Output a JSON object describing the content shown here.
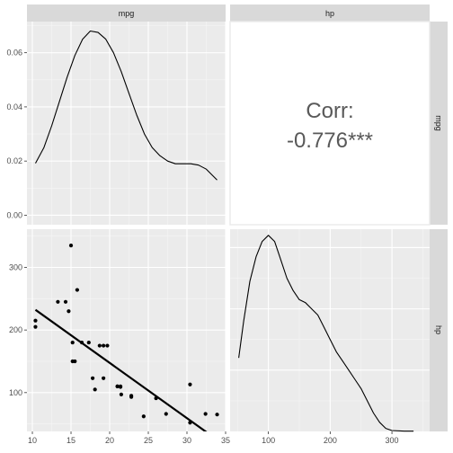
{
  "chart_data": {
    "type": "scatter",
    "variables": [
      "mpg",
      "hp"
    ],
    "colors": {
      "panel_bg": "#EBEBEB",
      "strip_bg": "#D9D9D9",
      "grid_major": "#FFFFFF",
      "grid_minor": "#F5F5F5",
      "line": "#000000",
      "corr_text": "#595959"
    },
    "mpg_density": {
      "xlim": [
        9.3,
        35.0
      ],
      "ylim": [
        -0.0035,
        0.0715
      ],
      "y_ticks": [
        "0.00",
        "0.02",
        "0.04",
        "0.06"
      ],
      "points": [
        [
          10.4,
          0.0192
        ],
        [
          11.5,
          0.025
        ],
        [
          12.5,
          0.033
        ],
        [
          13.5,
          0.042
        ],
        [
          14.5,
          0.051
        ],
        [
          15.5,
          0.059
        ],
        [
          16.5,
          0.065
        ],
        [
          17.5,
          0.068
        ],
        [
          18.5,
          0.0675
        ],
        [
          19.5,
          0.065
        ],
        [
          20.5,
          0.06
        ],
        [
          21.5,
          0.053
        ],
        [
          22.5,
          0.045
        ],
        [
          23.5,
          0.037
        ],
        [
          24.5,
          0.03
        ],
        [
          25.5,
          0.025
        ],
        [
          26.5,
          0.022
        ],
        [
          27.5,
          0.02
        ],
        [
          28.5,
          0.019
        ],
        [
          29.5,
          0.019
        ],
        [
          30.5,
          0.019
        ],
        [
          31.5,
          0.0185
        ],
        [
          32.5,
          0.017
        ],
        [
          33.9,
          0.013
        ]
      ]
    },
    "correlation": {
      "label": "Corr:",
      "value": "-0.776***"
    },
    "scatter": {
      "xlim": [
        9.3,
        35.0
      ],
      "ylim": [
        38,
        361
      ],
      "x_ticks": [
        "10",
        "15",
        "20",
        "25",
        "30",
        "35"
      ],
      "y_ticks": [
        "100",
        "200",
        "300"
      ],
      "points": [
        [
          21.0,
          110
        ],
        [
          21.0,
          110
        ],
        [
          22.8,
          93
        ],
        [
          21.4,
          110
        ],
        [
          18.7,
          175
        ],
        [
          18.1,
          105
        ],
        [
          14.3,
          245
        ],
        [
          24.4,
          62
        ],
        [
          22.8,
          95
        ],
        [
          19.2,
          123
        ],
        [
          17.8,
          123
        ],
        [
          16.4,
          180
        ],
        [
          17.3,
          180
        ],
        [
          15.2,
          180
        ],
        [
          10.4,
          205
        ],
        [
          10.4,
          215
        ],
        [
          14.7,
          230
        ],
        [
          32.4,
          66
        ],
        [
          30.4,
          52
        ],
        [
          33.9,
          65
        ],
        [
          21.5,
          97
        ],
        [
          15.5,
          150
        ],
        [
          15.2,
          150
        ],
        [
          13.3,
          245
        ],
        [
          19.2,
          175
        ],
        [
          27.3,
          66
        ],
        [
          26.0,
          91
        ],
        [
          30.4,
          113
        ],
        [
          15.8,
          264
        ],
        [
          19.7,
          175
        ],
        [
          15.0,
          335
        ],
        [
          21.4,
          109
        ]
      ],
      "fit": {
        "intercept": 324.08,
        "slope": -8.83
      }
    },
    "hp_density": {
      "xlim": [
        38,
        361
      ],
      "ylim": [
        0,
        0.0066
      ],
      "x_ticks": [
        "100",
        "200",
        "300"
      ],
      "points": [
        [
          52,
          0.0024
        ],
        [
          60,
          0.0036
        ],
        [
          70,
          0.0049
        ],
        [
          80,
          0.0057
        ],
        [
          90,
          0.0062
        ],
        [
          100,
          0.0064
        ],
        [
          110,
          0.0062
        ],
        [
          120,
          0.0056
        ],
        [
          130,
          0.005
        ],
        [
          140,
          0.0046
        ],
        [
          150,
          0.0043
        ],
        [
          160,
          0.0042
        ],
        [
          170,
          0.004
        ],
        [
          180,
          0.0038
        ],
        [
          190,
          0.0034
        ],
        [
          200,
          0.003
        ],
        [
          210,
          0.0026
        ],
        [
          220,
          0.0023
        ],
        [
          230,
          0.002
        ],
        [
          240,
          0.0017
        ],
        [
          250,
          0.0014
        ],
        [
          260,
          0.001
        ],
        [
          270,
          0.0006
        ],
        [
          280,
          0.0003
        ],
        [
          290,
          0.0001
        ],
        [
          300,
          3e-05
        ],
        [
          320,
          1e-05
        ],
        [
          335,
          1e-05
        ]
      ]
    }
  }
}
